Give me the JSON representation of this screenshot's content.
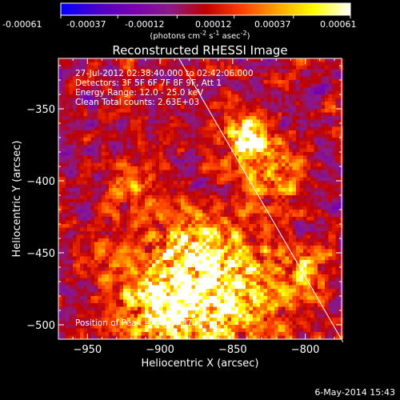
{
  "colorbar": {
    "tick_labels": [
      "-0.00061",
      "-0.00037",
      "-0.00012",
      "0.00012",
      "0.00037",
      "0.00061"
    ],
    "units_label": "(photons cm",
    "units_sup1": "-2",
    "units_mid": " s",
    "units_sup2": "-1",
    "units_mid2": " asec",
    "units_sup3": "-2",
    "units_end": ")",
    "min": -0.00061,
    "max": 0.00061
  },
  "chart_data": {
    "type": "heatmap",
    "title": "Reconstructed RHESSI Image",
    "xlabel": "Heliocentric X (arcsec)",
    "ylabel": "Heliocentric Y (arcsec)",
    "xlim": [
      -970,
      -775
    ],
    "ylim": [
      -510,
      -315
    ],
    "x_ticks": [
      -950,
      -900,
      -850,
      -800
    ],
    "y_ticks": [
      -350,
      -400,
      -450,
      -500
    ],
    "annotations": [
      "27-Jul-2012 02:38:40.000 to 02:42:06.000",
      "Detectors: 3F 5F 6F 7F 8F 9F, Att 1",
      "Energy Range: 12.0 - 25.0 keV",
      "Clean     Total counts: 2.63E+03"
    ],
    "peak_label": "Position of Peak = [-840,-372]",
    "peak": [
      -840,
      -372
    ],
    "limb_line": [
      [
        -887,
        -315
      ],
      [
        -774,
        -512
      ]
    ],
    "bright_regions": [
      {
        "x": -840,
        "y": -372,
        "r": 16,
        "v": 0.00061
      },
      {
        "x": -855,
        "y": -480,
        "r": 45,
        "v": 0.0005
      },
      {
        "x": -900,
        "y": -490,
        "r": 30,
        "v": 0.00045
      },
      {
        "x": -820,
        "y": -400,
        "r": 22,
        "v": 0.0003
      },
      {
        "x": -920,
        "y": -405,
        "r": 18,
        "v": 0.00025
      },
      {
        "x": -880,
        "y": -450,
        "r": 28,
        "v": 0.00032
      },
      {
        "x": -800,
        "y": -460,
        "r": 18,
        "v": 0.00024
      },
      {
        "x": -945,
        "y": -455,
        "r": 15,
        "v": 0.00015
      }
    ],
    "colors": {
      "stops": [
        "#0000ff",
        "#4b00c8",
        "#7a00b0",
        "#8a1a8a",
        "#c00000",
        "#ff4000",
        "#ffa500",
        "#ffff00",
        "#ffffff"
      ]
    }
  },
  "footer": {
    "date": "6-May-2014 15:43"
  }
}
